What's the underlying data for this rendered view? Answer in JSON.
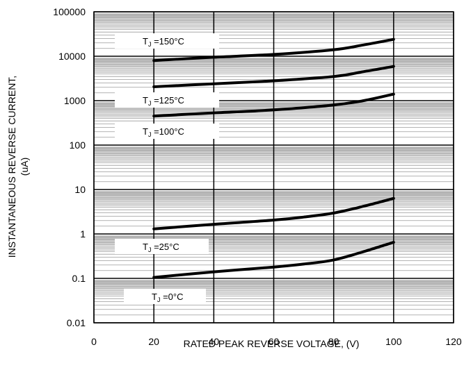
{
  "chart_data": {
    "type": "line",
    "title": "",
    "xlabel": "RATED PEAK REVERSE VOLTAGE, (V)",
    "ylabel_lines": [
      "INSTANTANEOUS REVERSE CURRENT,",
      "(uA)"
    ],
    "x_scale": "linear",
    "y_scale": "log",
    "xlim": [
      0,
      120
    ],
    "ylim": [
      0.01,
      100000
    ],
    "x_ticks": [
      0,
      20,
      40,
      60,
      80,
      100,
      120
    ],
    "x_tick_labels": [
      "0",
      "20",
      "40",
      "60",
      "80",
      "100",
      "120"
    ],
    "y_ticks": [
      0.01,
      0.1,
      1,
      10,
      100,
      1000,
      10000,
      100000
    ],
    "y_tick_labels": [
      "0.01",
      "0.1",
      "1",
      "10",
      "100",
      "1000",
      "10000",
      "100000"
    ],
    "grid": true,
    "series": [
      {
        "name": "TJ =150°C",
        "label_sub": "J",
        "label_rest": " =150°C",
        "x": [
          20,
          40,
          60,
          80,
          90,
          100
        ],
        "y": [
          8000,
          9500,
          11000,
          14000,
          18000,
          24000
        ]
      },
      {
        "name": "TJ =125°C",
        "label_sub": "J",
        "label_rest": " =125°C",
        "x": [
          20,
          40,
          60,
          80,
          90,
          100
        ],
        "y": [
          2050,
          2400,
          2800,
          3500,
          4500,
          5900
        ]
      },
      {
        "name": "TJ =100°C",
        "label_sub": "J",
        "label_rest": " =100°C",
        "x": [
          20,
          40,
          60,
          80,
          90,
          100
        ],
        "y": [
          450,
          530,
          620,
          800,
          1000,
          1400
        ]
      },
      {
        "name": "TJ =25°C",
        "label_sub": "J",
        "label_rest": " =25°C",
        "x": [
          20,
          40,
          60,
          70,
          80,
          90,
          100
        ],
        "y": [
          1.3,
          1.65,
          2.05,
          2.4,
          2.95,
          4.2,
          6.3
        ]
      },
      {
        "name": "TJ =0°C",
        "label_sub": "J",
        "label_rest": " =0°C",
        "x": [
          20,
          40,
          60,
          70,
          80,
          90,
          100
        ],
        "y": [
          0.105,
          0.14,
          0.18,
          0.21,
          0.26,
          0.4,
          0.65
        ]
      }
    ]
  }
}
